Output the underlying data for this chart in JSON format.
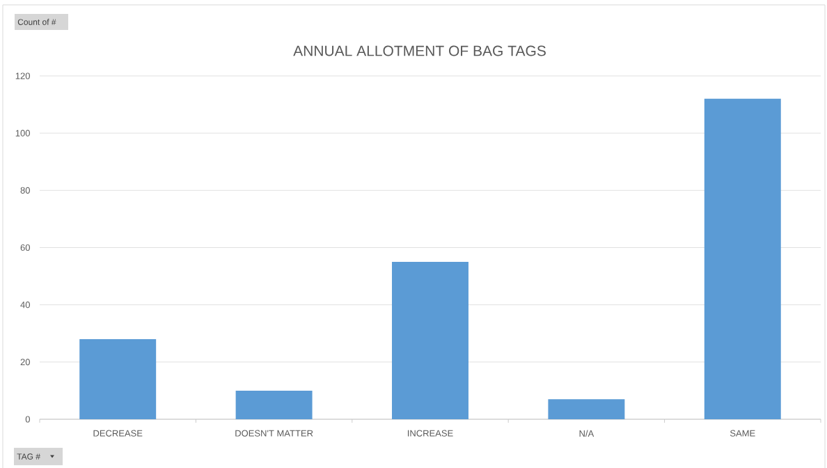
{
  "chart_data": {
    "type": "bar",
    "title": "ANNUAL ALLOTMENT OF BAG TAGS",
    "annotations": [
      "Count of #",
      "TAG #"
    ],
    "categories": [
      "DECREASE",
      "DOESN'T MATTER",
      "INCREASE",
      "N/A",
      "SAME"
    ],
    "values": [
      28,
      10,
      55,
      7,
      112
    ],
    "color": "#5b9bd5",
    "ylim": [
      0,
      120
    ],
    "yticks": [
      0,
      20,
      40,
      60,
      80,
      100,
      120
    ],
    "grid": "y"
  }
}
